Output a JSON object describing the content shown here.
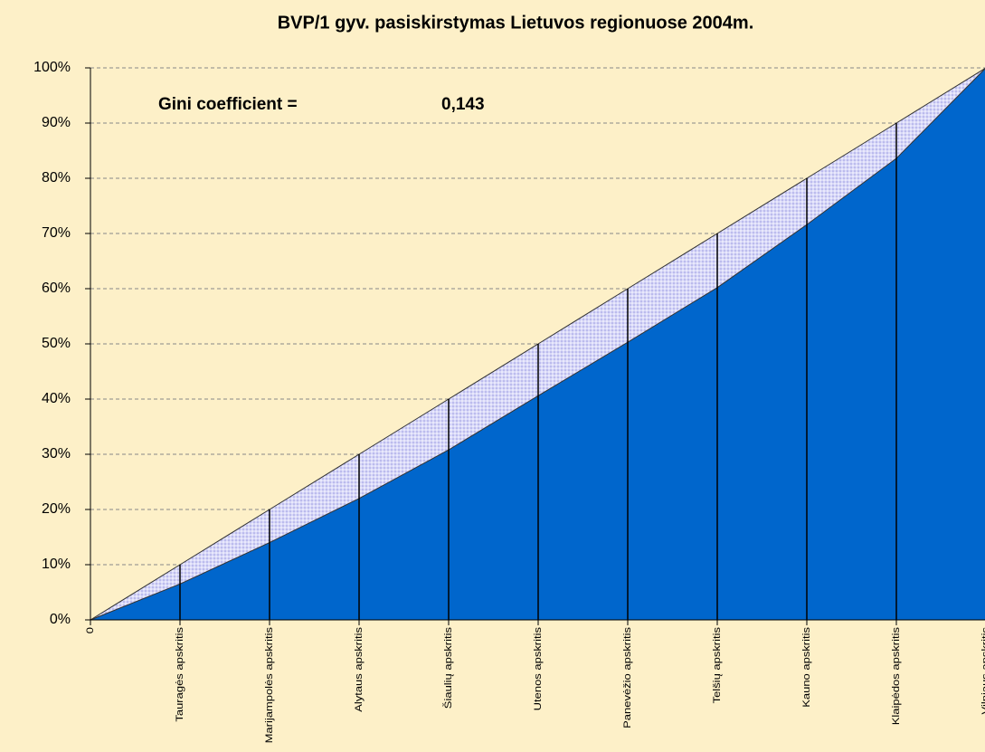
{
  "chart_data": {
    "type": "lorenz",
    "title": "BVP/1 gyv. pasiskirstymas Lietuvos regionuose 2004m.",
    "annotations": [
      "Gini coefficient =",
      "0,143"
    ],
    "categories": [
      "0",
      "Tauragės apskritis",
      "Marijampolės apskritis",
      "Alytaus apskritis",
      "Šiaulių apskritis",
      "Utenos apskritis",
      "Panevėžio apskritis",
      "Telšių apskritis",
      "Kauno apskritis",
      "Klaipėdos apskritis",
      "Vilniaus apskritis"
    ],
    "series": [
      {
        "color": "#c8c8f4",
        "values": [
          0,
          10,
          20,
          30,
          40,
          50,
          60,
          70,
          80,
          90,
          100
        ]
      },
      {
        "color": "#0066cc",
        "values": [
          0,
          6.5,
          14,
          22,
          30.8,
          40.6,
          50.3,
          60.2,
          71.6,
          83.6,
          100
        ]
      }
    ],
    "ylim": [
      0,
      100
    ],
    "yticks": [
      {
        "value": 0,
        "label": "0%"
      },
      {
        "value": 10,
        "label": "10%"
      },
      {
        "value": 20,
        "label": "20%"
      },
      {
        "value": 30,
        "label": "30%"
      },
      {
        "value": 40,
        "label": "40%"
      },
      {
        "value": 50,
        "label": "50%"
      },
      {
        "value": 60,
        "label": "60%"
      },
      {
        "value": 70,
        "label": "70%"
      },
      {
        "value": 80,
        "label": "80%"
      },
      {
        "value": 90,
        "label": "90%"
      },
      {
        "value": 100,
        "label": "100%"
      }
    ],
    "grid": true
  }
}
